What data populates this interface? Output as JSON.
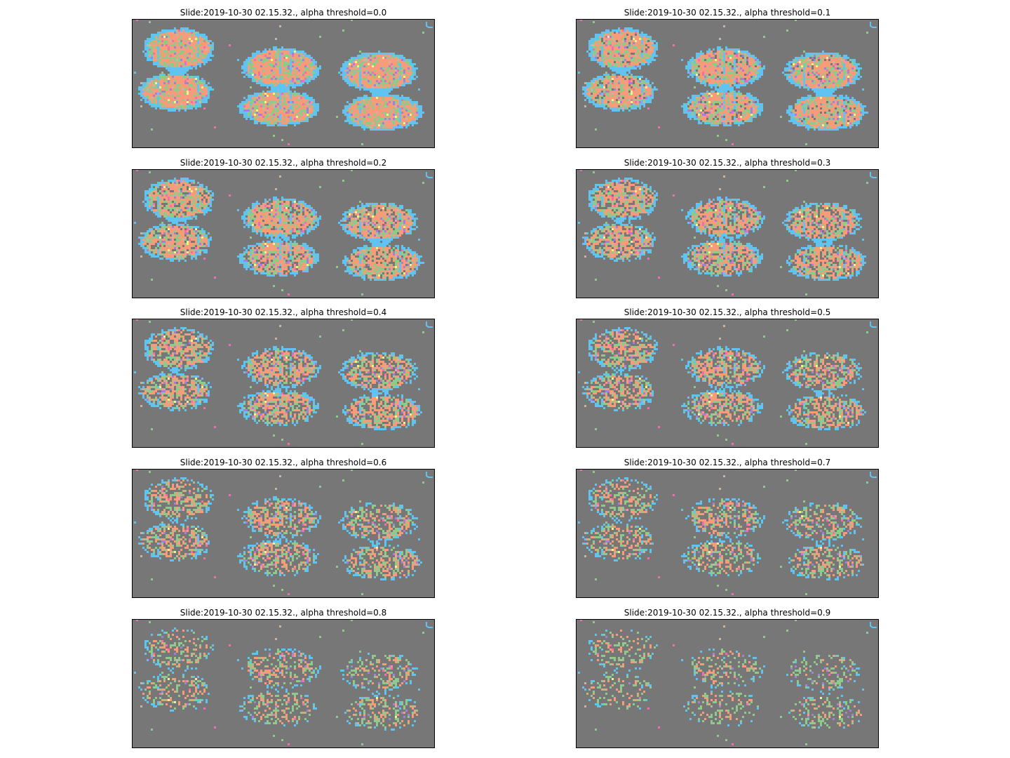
{
  "chart_data": {
    "type": "heatmap",
    "description_colors": {
      "background": "#777777",
      "cluster_colors": [
        "#8fc98b",
        "#f59c7a",
        "#60c3f0",
        "#a67fd6",
        "#ef6fb0",
        "#f2f28a",
        "#c9b6a0"
      ]
    },
    "layout": {
      "rows": 5,
      "cols": 2
    },
    "panels": [
      {
        "title": "Slide:2019-10-30 02.15.32., alpha threshold=0.0",
        "alpha_threshold": 0.0
      },
      {
        "title": "Slide:2019-10-30 02.15.32., alpha threshold=0.1",
        "alpha_threshold": 0.1
      },
      {
        "title": "Slide:2019-10-30 02.15.32., alpha threshold=0.2",
        "alpha_threshold": 0.2
      },
      {
        "title": "Slide:2019-10-30 02.15.32., alpha threshold=0.3",
        "alpha_threshold": 0.3
      },
      {
        "title": "Slide:2019-10-30 02.15.32., alpha threshold=0.4",
        "alpha_threshold": 0.4
      },
      {
        "title": "Slide:2019-10-30 02.15.32., alpha threshold=0.5",
        "alpha_threshold": 0.5
      },
      {
        "title": "Slide:2019-10-30 02.15.32., alpha threshold=0.6",
        "alpha_threshold": 0.6
      },
      {
        "title": "Slide:2019-10-30 02.15.32., alpha threshold=0.7",
        "alpha_threshold": 0.7
      },
      {
        "title": "Slide:2019-10-30 02.15.32., alpha threshold=0.8",
        "alpha_threshold": 0.8
      },
      {
        "title": "Slide:2019-10-30 02.15.32., alpha threshold=0.9",
        "alpha_threshold": 0.9
      }
    ]
  }
}
